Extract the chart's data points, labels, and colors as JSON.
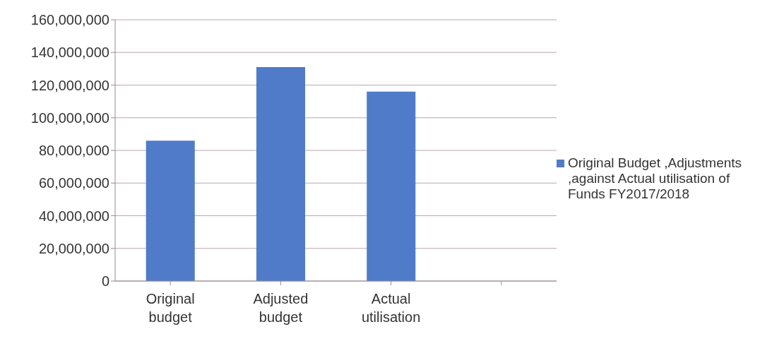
{
  "chart_data": {
    "type": "bar",
    "categories": [
      "Original budget",
      "Adjusted budget",
      "Actual utilisation",
      null
    ],
    "series": [
      {
        "name": "Original Budget ,Adjustments ,against Actual utilisation of Funds FY2017/2018",
        "color": "#4f7bc8",
        "values": [
          86000000,
          131000000,
          116000000,
          null
        ]
      }
    ],
    "ylim": [
      0,
      160000000
    ],
    "yticks": [
      0,
      {
        "value": 20000000,
        "label": "20,000,000"
      },
      {
        "value": 40000000,
        "label": "40,000,000"
      },
      {
        "value": 60000000,
        "label": "60,000,000"
      },
      {
        "value": 80000000,
        "label": "80,000,000"
      },
      {
        "value": 100000000,
        "label": "100,000,000"
      },
      {
        "value": 120000000,
        "label": "120,000,000"
      },
      {
        "value": 140000000,
        "label": "140,000,000"
      },
      {
        "value": 160000000,
        "label": "160,000,000"
      }
    ],
    "grid": "y",
    "legend": "right"
  }
}
